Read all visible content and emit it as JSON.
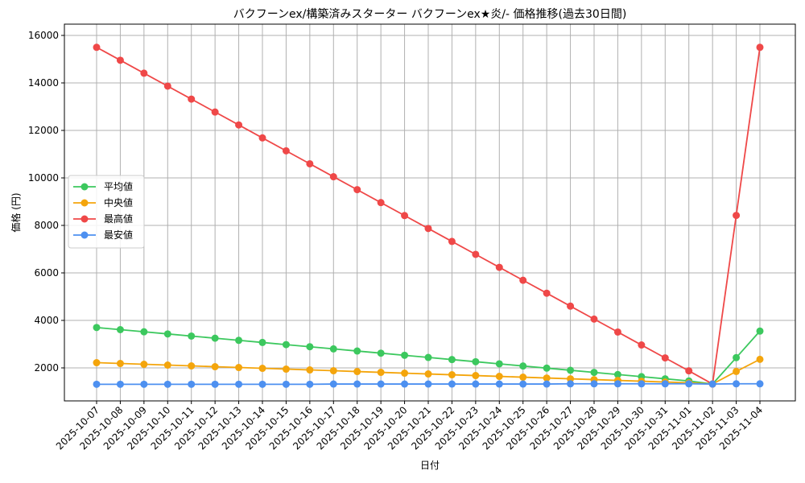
{
  "chart_data": {
    "type": "line",
    "title": "バクフーンex/構築済みスターター バクフーンex★炎/- 価格推移(過去30日間)",
    "x_label": "日付",
    "y_label": "価格 (円)",
    "categories": [
      "2025-10-07",
      "2025-10-08",
      "2025-10-09",
      "2025-10-10",
      "2025-10-11",
      "2025-10-12",
      "2025-10-13",
      "2025-10-14",
      "2025-10-15",
      "2025-10-16",
      "2025-10-17",
      "2025-10-18",
      "2025-10-19",
      "2025-10-20",
      "2025-10-21",
      "2025-10-22",
      "2025-10-23",
      "2025-10-24",
      "2025-10-25",
      "2025-10-26",
      "2025-10-27",
      "2025-10-28",
      "2025-10-29",
      "2025-10-30",
      "2025-10-31",
      "2025-11-01",
      "2025-11-02",
      "2025-11-03",
      "2025-11-04"
    ],
    "series": [
      {
        "name": "平均値",
        "color": "#3cc85e",
        "values": [
          3700,
          3610,
          3520,
          3430,
          3340,
          3250,
          3160,
          3070,
          2980,
          2890,
          2800,
          2710,
          2620,
          2530,
          2440,
          2350,
          2260,
          2170,
          2080,
          1990,
          1900,
          1810,
          1720,
          1630,
          1540,
          1450,
          1320,
          2430,
          3550
        ]
      },
      {
        "name": "中央値",
        "color": "#f4a50c",
        "values": [
          2220,
          2186,
          2152,
          2118,
          2084,
          2050,
          2016,
          1982,
          1948,
          1914,
          1880,
          1846,
          1812,
          1778,
          1744,
          1710,
          1676,
          1642,
          1608,
          1574,
          1540,
          1506,
          1472,
          1438,
          1404,
          1370,
          1320,
          1850,
          2360
        ]
      },
      {
        "name": "最高値",
        "color": "#ef4848",
        "values": [
          15500,
          14955,
          14410,
          13865,
          13320,
          12775,
          12230,
          11685,
          11140,
          10595,
          10050,
          9505,
          8960,
          8415,
          7870,
          7325,
          6780,
          6235,
          5690,
          5145,
          4600,
          4055,
          3510,
          2965,
          2420,
          1875,
          1320,
          8420,
          15500
        ]
      },
      {
        "name": "最安値",
        "color": "#4d90f0",
        "values": [
          1310,
          1310,
          1310,
          1310,
          1310,
          1310,
          1310,
          1310,
          1310,
          1310,
          1320,
          1320,
          1320,
          1320,
          1320,
          1320,
          1320,
          1320,
          1320,
          1320,
          1330,
          1330,
          1330,
          1330,
          1330,
          1330,
          1320,
          1330,
          1330
        ]
      }
    ],
    "ylim": [
      610,
      16475
    ],
    "yticks": [
      2000,
      4000,
      6000,
      8000,
      10000,
      12000,
      14000,
      16000
    ],
    "grid": true,
    "legend": "center left"
  }
}
